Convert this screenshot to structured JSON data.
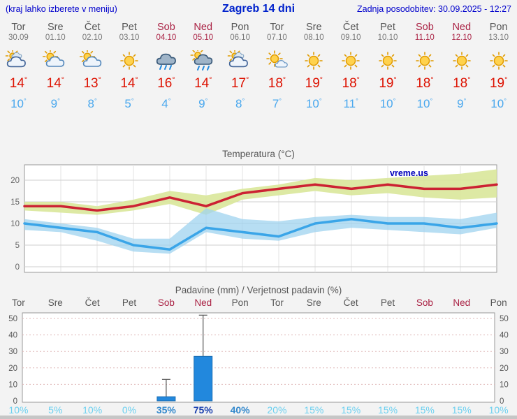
{
  "header": {
    "note": "(kraj lahko izberete v meniju)",
    "title": "Zagreb 14 dni",
    "updated": "Zadnja posodobitev: 30.09.2025 - 12:27"
  },
  "watermark": "vreme.us",
  "labels": {
    "degree": "°"
  },
  "colors": {
    "accent_blue": "#0000cc",
    "weekend": "#aa2244",
    "weekday": "#555555",
    "temp_high": "#dd1100",
    "temp_low": "#4aa8ee",
    "line_high": "#cc2233",
    "line_low": "#3aa5e8",
    "band_high": "#d9e79a",
    "band_low": "#9fd3ef",
    "bar_fill": "#2288dd",
    "prob_low": "#6cd0f0",
    "prob_mid": "#3388cc",
    "prob_high": "#1a3fae"
  },
  "days": [
    {
      "name": "Tor",
      "date": "30.09",
      "weekend": false,
      "icon": "cloudy",
      "high": 14,
      "low": 10,
      "prob": "10%",
      "prob_level": "low"
    },
    {
      "name": "Sre",
      "date": "01.10",
      "weekend": false,
      "icon": "partly-cloudy",
      "high": 14,
      "low": 9,
      "prob": "5%",
      "prob_level": "low"
    },
    {
      "name": "Čet",
      "date": "02.10",
      "weekend": false,
      "icon": "partly-cloudy",
      "high": 13,
      "low": 8,
      "prob": "10%",
      "prob_level": "low"
    },
    {
      "name": "Pet",
      "date": "03.10",
      "weekend": false,
      "icon": "sunny",
      "high": 14,
      "low": 5,
      "prob": "0%",
      "prob_level": "low"
    },
    {
      "name": "Sob",
      "date": "04.10",
      "weekend": true,
      "icon": "rain",
      "high": 16,
      "low": 4,
      "prob": "35%",
      "prob_level": "mid"
    },
    {
      "name": "Ned",
      "date": "05.10",
      "weekend": true,
      "icon": "rain-sun",
      "high": 14,
      "low": 9,
      "prob": "75%",
      "prob_level": "high"
    },
    {
      "name": "Pon",
      "date": "06.10",
      "weekend": false,
      "icon": "cloudy",
      "high": 17,
      "low": 8,
      "prob": "40%",
      "prob_level": "mid"
    },
    {
      "name": "Tor",
      "date": "07.10",
      "weekend": false,
      "icon": "mostly-sunny",
      "high": 18,
      "low": 7,
      "prob": "20%",
      "prob_level": "low"
    },
    {
      "name": "Sre",
      "date": "08.10",
      "weekend": false,
      "icon": "sunny",
      "high": 19,
      "low": 10,
      "prob": "15%",
      "prob_level": "low"
    },
    {
      "name": "Čet",
      "date": "09.10",
      "weekend": false,
      "icon": "sunny",
      "high": 18,
      "low": 11,
      "prob": "15%",
      "prob_level": "low"
    },
    {
      "name": "Pet",
      "date": "10.10",
      "weekend": false,
      "icon": "sunny",
      "high": 19,
      "low": 10,
      "prob": "15%",
      "prob_level": "low"
    },
    {
      "name": "Sob",
      "date": "11.10",
      "weekend": true,
      "icon": "sunny",
      "high": 18,
      "low": 10,
      "prob": "15%",
      "prob_level": "low"
    },
    {
      "name": "Ned",
      "date": "12.10",
      "weekend": true,
      "icon": "sunny",
      "high": 18,
      "low": 9,
      "prob": "15%",
      "prob_level": "low"
    },
    {
      "name": "Pon",
      "date": "13.10",
      "weekend": false,
      "icon": "sunny",
      "high": 19,
      "low": 10,
      "prob": "10%",
      "prob_level": "low"
    }
  ],
  "chart_data": [
    {
      "type": "line",
      "title": "Temperatura (°C)",
      "categories": [
        "Tor",
        "Sre",
        "Čet",
        "Pet",
        "Sob",
        "Ned",
        "Pon",
        "Tor",
        "Sre",
        "Čet",
        "Pet",
        "Sob",
        "Ned",
        "Pon"
      ],
      "ylim": [
        -1.5,
        23.5
      ],
      "yticks": [
        0,
        5,
        10,
        15,
        20
      ],
      "grid": true,
      "legend": "none",
      "series": [
        {
          "name": "max_temp",
          "values": [
            14,
            14,
            13,
            14,
            16,
            14,
            17,
            18,
            19,
            18,
            19,
            18,
            18,
            19
          ]
        },
        {
          "name": "min_temp",
          "values": [
            10,
            9,
            8,
            5,
            4,
            9,
            8,
            7,
            10,
            11,
            10,
            10,
            9,
            10
          ]
        },
        {
          "name": "max_band_upper",
          "values": [
            15,
            15,
            14,
            15.5,
            17.5,
            16.5,
            18,
            19,
            20.5,
            20,
            20.5,
            21,
            21.5,
            22.5
          ]
        },
        {
          "name": "max_band_lower",
          "values": [
            13,
            12.5,
            12,
            13,
            14.5,
            12,
            15.5,
            16.5,
            17.5,
            16.5,
            17,
            16,
            15.5,
            16
          ]
        },
        {
          "name": "min_band_upper",
          "values": [
            11,
            10,
            9,
            6.5,
            6.5,
            13.5,
            11,
            10.5,
            11.5,
            12,
            11.5,
            11.5,
            11,
            12.5
          ]
        },
        {
          "name": "min_band_lower",
          "values": [
            8.5,
            8,
            6,
            3.5,
            3,
            8,
            6.5,
            6,
            8,
            9,
            8.5,
            8,
            7.5,
            9
          ]
        }
      ]
    },
    {
      "type": "bar",
      "title": "Padavine (mm) / Verjetnost padavin (%)",
      "categories": [
        "Tor",
        "Sre",
        "Čet",
        "Pet",
        "Sob",
        "Ned",
        "Pon",
        "Tor",
        "Sre",
        "Čet",
        "Pet",
        "Sob",
        "Ned",
        "Pon"
      ],
      "ylim": [
        0,
        52
      ],
      "yticks": [
        0,
        10,
        20,
        30,
        40,
        50
      ],
      "ylabel_left_and_right": true,
      "values": [
        0,
        0,
        0,
        0,
        2.5,
        27,
        0,
        0,
        0,
        0,
        0,
        0,
        0,
        0
      ],
      "whiskers": [
        null,
        null,
        null,
        null,
        [
          0.5,
          13
        ],
        [
          5,
          52
        ],
        null,
        null,
        null,
        null,
        null,
        null,
        null,
        null
      ],
      "probabilities_pct": [
        10,
        5,
        10,
        0,
        35,
        75,
        40,
        20,
        15,
        15,
        15,
        15,
        15,
        10
      ]
    }
  ]
}
